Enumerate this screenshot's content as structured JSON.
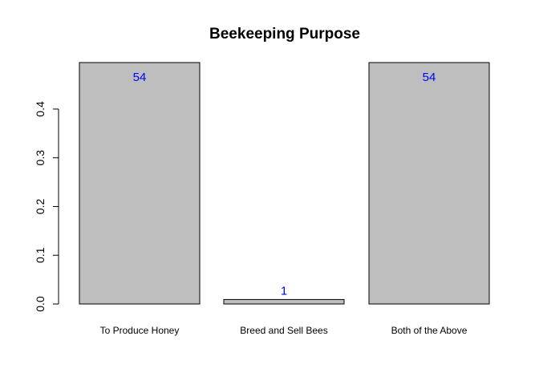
{
  "chart_data": {
    "type": "bar",
    "title": "Beekeeping Purpose",
    "xlabel": "",
    "ylabel": "",
    "categories": [
      "To Produce Honey",
      "Breed and Sell Bees",
      "Both of the Above"
    ],
    "values": [
      0.4954,
      0.0092,
      0.4954
    ],
    "data_labels": [
      "54",
      "1",
      "54"
    ],
    "yticks": [
      0.0,
      0.1,
      0.2,
      0.3,
      0.4
    ],
    "ytick_labels": [
      "0.0",
      "0.1",
      "0.2",
      "0.3",
      "0.4"
    ],
    "ylim": [
      0,
      0.4954
    ],
    "bar_color": "#bebebe",
    "label_color": "#0000ff",
    "grid": false,
    "legend": "none"
  }
}
